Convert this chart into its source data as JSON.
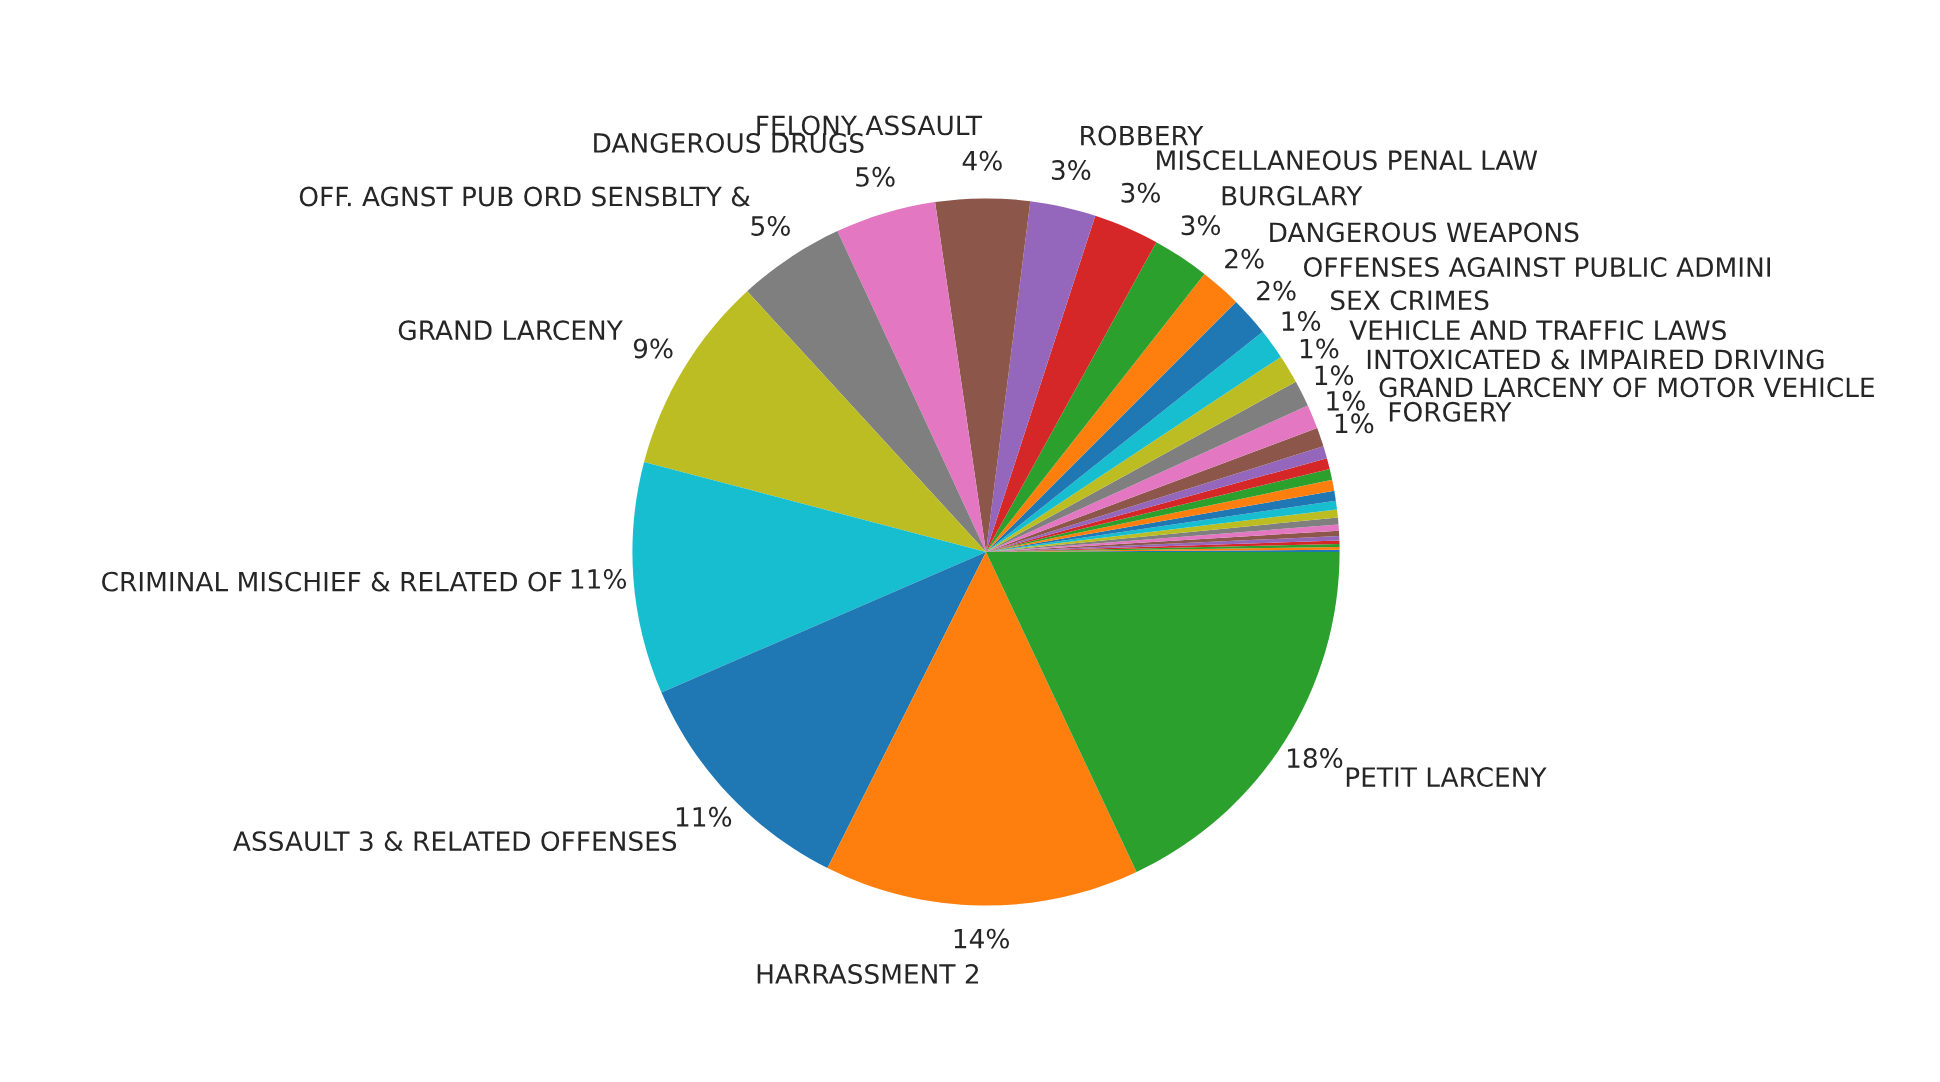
{
  "chart_data": {
    "type": "pie",
    "categories": [
      null,
      null,
      null,
      null,
      null,
      null,
      null,
      null,
      null,
      null,
      null,
      null,
      null,
      null,
      null,
      "FORGERY",
      "GRAND LARCENY OF MOTOR VEHICLE",
      "INTOXICATED & IMPAIRED DRIVING",
      "VEHICLE AND TRAFFIC LAWS",
      "SEX CRIMES",
      "OFFENSES AGAINST PUBLIC ADMINI",
      "DANGEROUS WEAPONS",
      "BURGLARY",
      "MISCELLANEOUS PENAL LAW",
      "ROBBERY",
      "FELONY ASSAULT",
      "DANGEROUS DRUGS",
      "OFF. AGNST PUB ORD SENSBLTY &",
      "GRAND LARCENY",
      "CRIMINAL MISCHIEF & RELATED OF",
      "ASSAULT 3 & RELATED OFFENSES",
      "HARRASSMENT 2",
      "PETIT LARCENY"
    ],
    "values": [
      0.1,
      0.12,
      0.14,
      0.16,
      0.2,
      0.24,
      0.28,
      0.32,
      0.36,
      0.4,
      0.45,
      0.5,
      0.5,
      0.5,
      0.56,
      0.87,
      1.1,
      1.2,
      1.3,
      1.4,
      1.8,
      1.9,
      2.6,
      3.0,
      3.0,
      4.3,
      4.6,
      4.9,
      9.1,
      10.6,
      11.1,
      14.4,
      18.0
    ],
    "value_labels": [
      null,
      null,
      null,
      null,
      null,
      null,
      null,
      null,
      null,
      null,
      null,
      null,
      null,
      null,
      null,
      "1%",
      "1%",
      "1%",
      "1%",
      "1%",
      "2%",
      "2%",
      "3%",
      "3%",
      "3%",
      "4%",
      "5%",
      "5%",
      "9%",
      "11%",
      "11%",
      "14%",
      "18%"
    ],
    "colors": [
      "#1f77b4",
      "#ff7f0e",
      "#2ca02c",
      "#d62728",
      "#9467bd",
      "#8c564b",
      "#e377c2",
      "#7f7f7f",
      "#bcbd22",
      "#17becf",
      "#1f77b4",
      "#ff7f0e",
      "#2ca02c",
      "#d62728",
      "#9467bd",
      "#8c564b",
      "#e377c2",
      "#7f7f7f",
      "#bcbd22",
      "#17becf",
      "#1f77b4",
      "#ff7f0e",
      "#2ca02c",
      "#d62728",
      "#9467bd",
      "#8c564b",
      "#e377c2",
      "#7f7f7f",
      "#bcbd22",
      "#17becf",
      "#1f77b4",
      "#ff7f0e",
      "#2ca02c"
    ]
  }
}
